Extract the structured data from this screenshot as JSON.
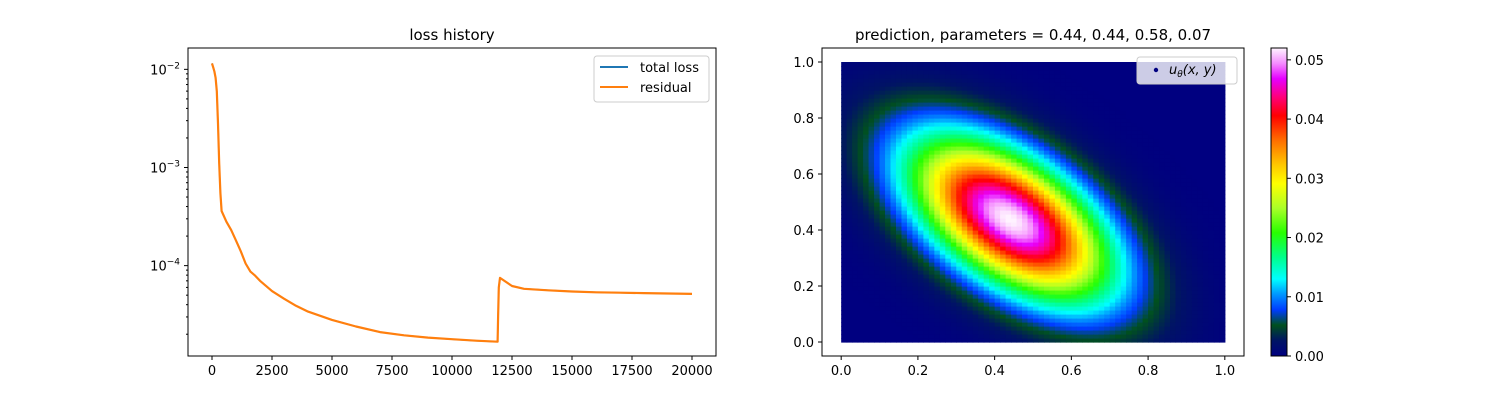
{
  "chart_data": [
    {
      "type": "line",
      "title": "loss history",
      "xlabel": "",
      "ylabel": "",
      "yscale": "log",
      "xlim": [
        -1000,
        21000
      ],
      "ylim": [
        1.2e-05,
        0.0165
      ],
      "x_ticks": [
        0,
        2500,
        5000,
        7500,
        10000,
        12500,
        15000,
        17500,
        20000
      ],
      "x_tick_labels": [
        "0",
        "2500",
        "5000",
        "7500",
        "10000",
        "12500",
        "15000",
        "17500",
        "20000"
      ],
      "y_ticks": [
        0.01,
        0.001,
        0.0001
      ],
      "y_tick_labels": [
        {
          "base": "10",
          "exp": "−2"
        },
        {
          "base": "10",
          "exp": "−3"
        },
        {
          "base": "10",
          "exp": "−4"
        }
      ],
      "grid": false,
      "legend_position": "upper-right",
      "series": [
        {
          "name": "total loss",
          "color": "#1f77b4",
          "x": [
            0,
            50,
            100,
            150,
            200,
            250,
            300,
            350,
            400,
            600,
            800,
            1000,
            1200,
            1400,
            1600,
            1800,
            2000,
            2500,
            3000,
            3500,
            4000,
            5000,
            6000,
            7000,
            8000,
            9000,
            10000,
            11000,
            11900,
            11920,
            11950,
            12000,
            12500,
            13000,
            14000,
            15000,
            16000,
            17000,
            18000,
            19000,
            20000
          ],
          "y": [
            0.0115,
            0.0105,
            0.0095,
            0.0082,
            0.006,
            0.0028,
            0.0011,
            0.00055,
            0.00036,
            0.00028,
            0.00023,
            0.00018,
            0.00014,
            0.000105,
            8.7e-05,
            7.9e-05,
            7e-05,
            5.5e-05,
            4.6e-05,
            3.9e-05,
            3.4e-05,
            2.8e-05,
            2.4e-05,
            2.1e-05,
            1.95e-05,
            1.85e-05,
            1.78e-05,
            1.72e-05,
            1.68e-05,
            3e-05,
            6e-05,
            7.5e-05,
            6.2e-05,
            5.8e-05,
            5.6e-05,
            5.45e-05,
            5.35e-05,
            5.3e-05,
            5.25e-05,
            5.2e-05,
            5.15e-05
          ]
        },
        {
          "name": "residual",
          "color": "#ff7f0e",
          "x": [
            0,
            50,
            100,
            150,
            200,
            250,
            300,
            350,
            400,
            600,
            800,
            1000,
            1200,
            1400,
            1600,
            1800,
            2000,
            2500,
            3000,
            3500,
            4000,
            5000,
            6000,
            7000,
            8000,
            9000,
            10000,
            11000,
            11900,
            11920,
            11950,
            12000,
            12500,
            13000,
            14000,
            15000,
            16000,
            17000,
            18000,
            19000,
            20000
          ],
          "y": [
            0.0115,
            0.0105,
            0.0095,
            0.0082,
            0.006,
            0.0028,
            0.0011,
            0.00055,
            0.00036,
            0.00028,
            0.00023,
            0.00018,
            0.00014,
            0.000105,
            8.7e-05,
            7.9e-05,
            7e-05,
            5.5e-05,
            4.6e-05,
            3.9e-05,
            3.4e-05,
            2.8e-05,
            2.4e-05,
            2.1e-05,
            1.95e-05,
            1.85e-05,
            1.78e-05,
            1.72e-05,
            1.68e-05,
            3e-05,
            6e-05,
            7.5e-05,
            6.2e-05,
            5.8e-05,
            5.6e-05,
            5.45e-05,
            5.35e-05,
            5.3e-05,
            5.25e-05,
            5.2e-05,
            5.15e-05
          ]
        }
      ]
    },
    {
      "type": "heatmap",
      "title": "prediction, parameters = 0.44, 0.44, 0.58, 0.07",
      "xlabel": "",
      "ylabel": "",
      "xlim": [
        -0.05,
        1.05
      ],
      "ylim": [
        -0.05,
        1.05
      ],
      "x_ticks": [
        0.0,
        0.2,
        0.4,
        0.6,
        0.8,
        1.0
      ],
      "x_tick_labels": [
        "0.0",
        "0.2",
        "0.4",
        "0.6",
        "0.8",
        "1.0"
      ],
      "y_ticks": [
        0.0,
        0.2,
        0.4,
        0.6,
        0.8,
        1.0
      ],
      "y_tick_labels": [
        "0.0",
        "0.2",
        "0.4",
        "0.6",
        "0.8",
        "1.0"
      ],
      "field": {
        "center": [
          0.44,
          0.44
        ],
        "peak": 0.052,
        "sigma_x": 0.18,
        "sigma_y": 0.2,
        "correlation": -0.55,
        "domain": [
          [
            0,
            1
          ],
          [
            0,
            1
          ]
        ]
      },
      "legend_position": "upper-right",
      "legend": {
        "label_main": "u",
        "label_sub": "θ",
        "label_args": "(x, y)",
        "marker_color": "#000080"
      },
      "colorbar": {
        "colormap": "gist_ncar",
        "range": [
          0.0,
          0.052
        ],
        "ticks": [
          0.0,
          0.01,
          0.02,
          0.03,
          0.04,
          0.05
        ],
        "tick_labels": [
          "0.00",
          "0.01",
          "0.02",
          "0.03",
          "0.04",
          "0.05"
        ]
      }
    }
  ]
}
